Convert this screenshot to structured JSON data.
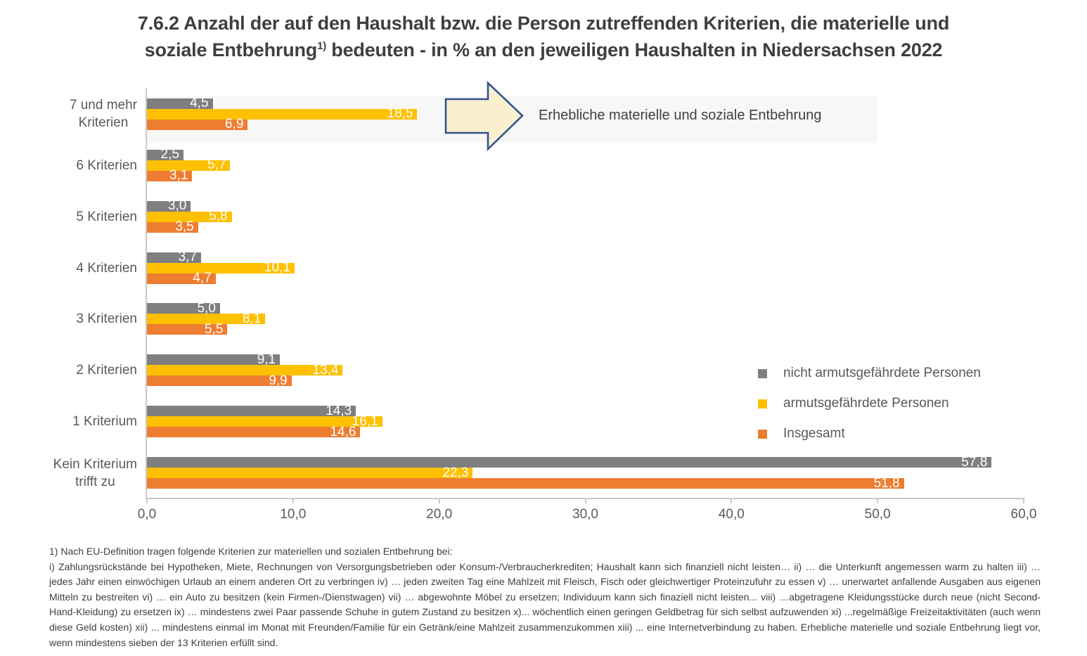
{
  "title": {
    "line1": "7.6.2 Anzahl der auf den Haushalt bzw. die Person zutreffenden Kriterien, die materielle und",
    "line2_part1": "soziale Entbehrung",
    "superscript": "1)",
    "line2_part2": " bedeuten - in % an den jeweiligen Haushalten in Niedersachsen 2022"
  },
  "chart_data": {
    "type": "bar",
    "orientation": "horizontal",
    "title": "7.6.2 Anzahl der auf den Haushalt bzw. die Person zutreffenden Kriterien, die materielle und soziale Entbehrung bedeuten - in % an den jeweiligen Haushalten in Niedersachsen 2022",
    "categories": [
      "7 und mehr\nKriterien",
      "6 Kriterien",
      "5 Kriterien",
      "4 Kriterien",
      "3 Kriterien",
      "2 Kriterien",
      "1 Kriterium",
      "Kein Kriterium\ntrifft zu"
    ],
    "series": [
      {
        "name": "nicht armutsgefährdete Personen",
        "color": "#7f7f7f",
        "values": [
          4.5,
          2.5,
          3.0,
          3.7,
          5.0,
          9.1,
          14.3,
          57.8
        ],
        "labels": [
          "4,5",
          "2,5",
          "3,0",
          "3,7",
          "5,0",
          "9,1",
          "14,3",
          "57,8"
        ]
      },
      {
        "name": "armutsgefährdete Personen",
        "color": "#ffc000",
        "values": [
          18.5,
          5.7,
          5.8,
          10.1,
          8.1,
          13.4,
          16.1,
          22.3
        ],
        "labels": [
          "18,5",
          "5,7",
          "5,8",
          "10,1",
          "8,1",
          "13,4",
          "16,1",
          "22,3"
        ]
      },
      {
        "name": "Insgesamt",
        "color": "#ed7d31",
        "values": [
          6.9,
          3.1,
          3.5,
          4.7,
          5.5,
          9.9,
          14.6,
          51.8
        ],
        "labels": [
          "6,9",
          "3,1",
          "3,5",
          "4,7",
          "5,5",
          "9,9",
          "14,6",
          "51,8"
        ]
      }
    ],
    "xlim": [
      0,
      60
    ],
    "xtick_values": [
      0,
      10,
      20,
      30,
      40,
      50,
      60
    ],
    "xtick_labels": [
      "0,0",
      "10,0",
      "20,0",
      "30,0",
      "40,0",
      "50,0",
      "60,0"
    ],
    "grid": "off",
    "legend_position": "middle-right",
    "annotation": "Erhebliche materielle und soziale Entbehrung",
    "annotation_arrow_fill": "#faf0ce",
    "annotation_arrow_stroke": "#31538f",
    "highlight_row": 0,
    "highlight_color": "#f7f7f7",
    "value_label_color": "#ffffff"
  },
  "footnote": {
    "intro": "1) Nach EU-Definition tragen folgende Kriterien zur materiellen und sozialen Entbehrung bei:",
    "body": "i) Zahlungsrückstände bei Hypotheken, Miete, Rechnungen von Versorgungsbetrieben oder Konsum-/Verbraucherkrediten; Haushalt kann sich finanziell nicht leisten… ii) … die Unterkunft angemessen warm zu halten iii) … jedes Jahr einen einwöchigen Urlaub an einem anderen Ort zu verbringen iv) … jeden zweiten Tag eine Mahlzeit mit Fleisch, Fisch oder gleichwertiger Proteinzufuhr zu essen v) … unerwartet anfallende Ausgaben aus eigenen Mitteln zu  bestreiten vi) … ein Auto zu besitzen (kein Firmen-/Dienstwagen)  vii) … abgewohnte Möbel zu ersetzen; Individuum kann sich finaziell nicht leisten... viii) …abgetragene Kleidungsstücke durch neue (nicht Second-Hand-Kleidung) zu ersetzen  ix) … mindestens zwei Paar passende Schuhe in gutem Zustand zu besitzen  x)... wöchentlich einen geringen Geldbetrag für sich selbst aufzuwenden xi) ...regelmäßige Freizeitaktivitäten (auch wenn diese Geld kosten) xii) ... mindestens einmal im Monat mit Freunden/Familie für ein Getränk/eine Mahlzeit zusammenzukommen xiii) ... eine Internetverbindung zu haben. Erhebliche materielle und soziale Entbehrung liegt vor, wenn mindestens sieben der 13 Kriterien erfüllt sind."
  }
}
